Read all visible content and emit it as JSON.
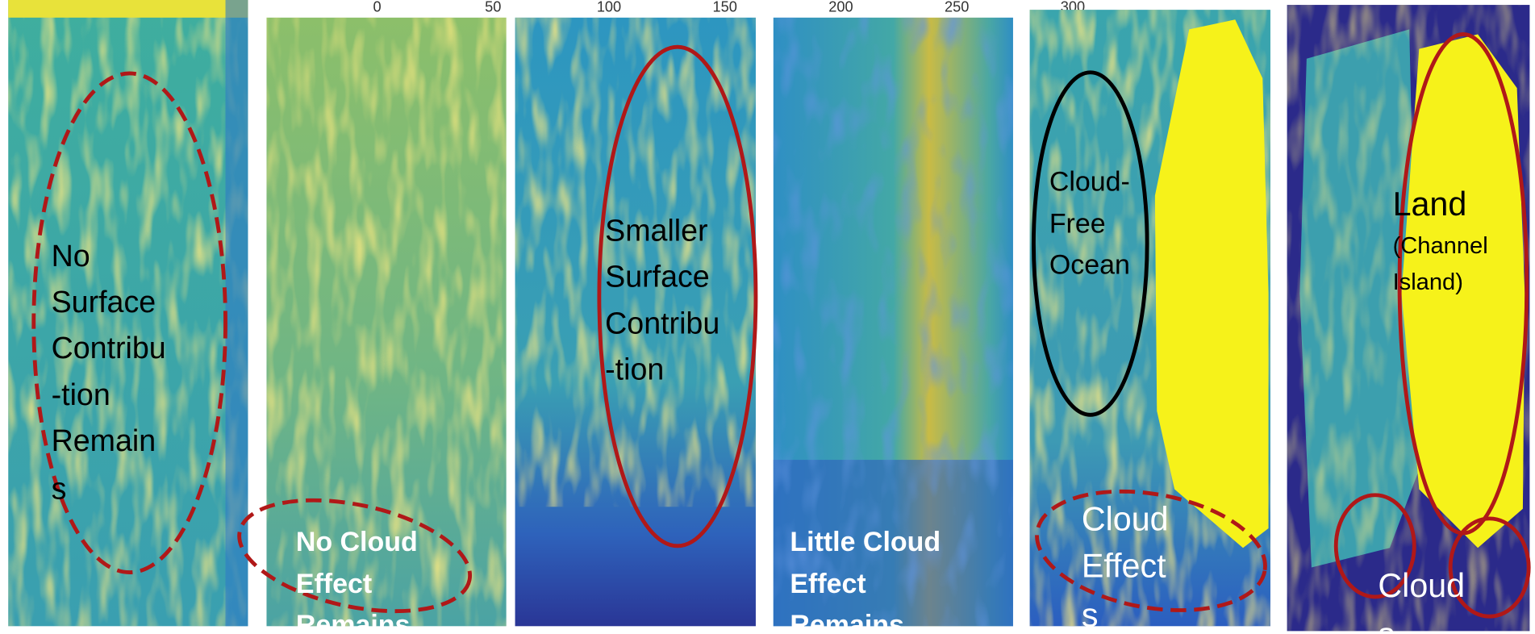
{
  "axis": {
    "ticks": [
      0,
      50,
      100,
      150,
      200,
      250,
      300
    ]
  },
  "panels": [
    {
      "label_lines": [
        "No",
        "Surface",
        "Contribu",
        "-tion",
        "Remain",
        "s"
      ]
    },
    {
      "label_lines": [
        "No Cloud",
        "Effect",
        "Remains"
      ]
    },
    {
      "label_lines": [
        "Smaller",
        "Surface",
        "Contribu",
        "-tion"
      ]
    },
    {
      "label_lines": [
        "Little Cloud",
        "Effect",
        "Remains"
      ]
    },
    {
      "label_lines": [
        "Cloud-",
        "Free",
        "Ocean"
      ],
      "cloud_lines": [
        "Cloud",
        "Effect",
        "s"
      ]
    },
    {
      "title": "Land",
      "label_lines": [
        "(Channel",
        "Island)"
      ],
      "cloud_lines": [
        "Cloud",
        "s"
      ]
    }
  ]
}
